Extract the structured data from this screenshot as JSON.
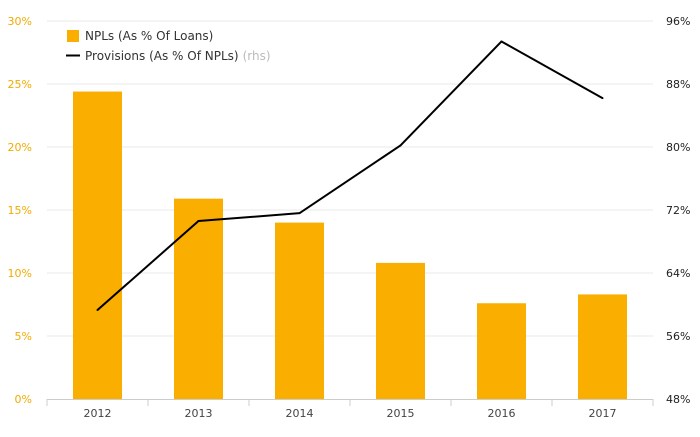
{
  "chart_data": {
    "type": "bar+line",
    "categories": [
      "2012",
      "2013",
      "2014",
      "2015",
      "2016",
      "2017"
    ],
    "series": [
      {
        "name": "NPLs (As % Of Loans)",
        "type": "bar",
        "axis": "left",
        "color": "#f9ae00",
        "values": [
          24.4,
          15.9,
          14.0,
          10.8,
          7.6,
          8.3
        ]
      },
      {
        "name": "Provisions (As % Of NPLs)",
        "type": "line",
        "axis": "right",
        "color": "#000000",
        "values": [
          59.3,
          70.6,
          71.6,
          80.2,
          93.4,
          86.2
        ]
      }
    ],
    "left_axis": {
      "min": 0,
      "max": 30,
      "step": 5,
      "suffix": "%",
      "color": "#f2aa00"
    },
    "right_axis": {
      "min": 48,
      "max": 96,
      "step": 8,
      "suffix": "%",
      "color": "#222222"
    },
    "legend": {
      "placement": "top-left",
      "line_suffix": "(rhs)"
    },
    "grid": true
  }
}
